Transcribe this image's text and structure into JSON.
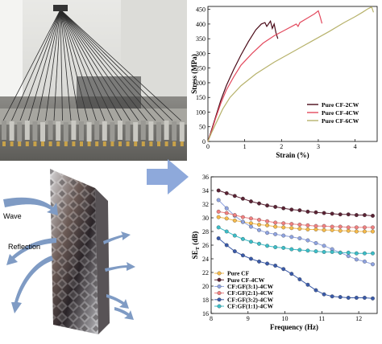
{
  "colors": {
    "arrow_fill": "#8ea9db",
    "wave_arrow": "#7f9bc4",
    "stress_cf2cw": "#4a0a18",
    "stress_cf4cw": "#e34a5e",
    "stress_cf6cw": "#b7b26b"
  },
  "photo": {
    "description_icon": "tensile-test-rig-photo"
  },
  "shielding_diagram": {
    "wave_label": "Wave",
    "reflection_label": "Reflection"
  },
  "chart_data": [
    {
      "type": "line",
      "xlabel": "Strain (%)",
      "ylabel": "Stress (MPa)",
      "xlim": [
        0,
        4.6
      ],
      "ylim": [
        0,
        460
      ],
      "xticks": [
        0,
        1,
        2,
        3,
        4
      ],
      "yticks": [
        0,
        50,
        100,
        150,
        200,
        250,
        300,
        350,
        400,
        450
      ],
      "grid": false,
      "legend_position": "bottom-right",
      "series": [
        {
          "name": "Pure CF-2CW",
          "color": "#4a0a18",
          "x": [
            0,
            0.1,
            0.2,
            0.35,
            0.5,
            0.7,
            0.9,
            1.1,
            1.3,
            1.45,
            1.55,
            1.6,
            1.7,
            1.75,
            1.8,
            1.85,
            1.9
          ],
          "y": [
            0,
            40,
            80,
            140,
            190,
            245,
            295,
            340,
            380,
            400,
            405,
            392,
            410,
            385,
            400,
            370,
            350
          ]
        },
        {
          "name": "Pure CF-4CW",
          "color": "#e34a5e",
          "x": [
            0,
            0.1,
            0.2,
            0.35,
            0.5,
            0.7,
            0.9,
            1.2,
            1.5,
            1.8,
            2.1,
            2.4,
            2.45,
            2.5,
            2.7,
            2.9,
            3.0,
            3.05,
            3.1
          ],
          "y": [
            0,
            35,
            75,
            130,
            175,
            220,
            260,
            300,
            335,
            360,
            380,
            400,
            392,
            405,
            420,
            435,
            445,
            425,
            402
          ]
        },
        {
          "name": "Pure CF-6CW",
          "color": "#b7b26b",
          "x": [
            0,
            0.1,
            0.25,
            0.4,
            0.6,
            0.9,
            1.3,
            1.8,
            2.3,
            2.8,
            3.3,
            3.7,
            4.0,
            4.2,
            4.35,
            4.45,
            4.5
          ],
          "y": [
            0,
            30,
            70,
            110,
            150,
            190,
            230,
            270,
            305,
            340,
            375,
            405,
            425,
            440,
            452,
            458,
            440
          ]
        }
      ]
    },
    {
      "type": "line",
      "xlabel": "Frequency (Hz)",
      "ylabel": "SE_T (dB)",
      "ylabel_main": "SE",
      "ylabel_sub": "T",
      "ylabel_unit": " (dB)",
      "xlim": [
        8,
        12.5
      ],
      "ylim": [
        16,
        36
      ],
      "xticks": [
        8,
        9,
        10,
        11,
        12
      ],
      "yticks": [
        16,
        18,
        20,
        22,
        24,
        26,
        28,
        30,
        32,
        34,
        36
      ],
      "grid": false,
      "legend_position": "bottom-left",
      "x": [
        8.2,
        8.42,
        8.64,
        8.86,
        9.08,
        9.3,
        9.52,
        9.74,
        9.96,
        10.18,
        10.4,
        10.62,
        10.84,
        11.06,
        11.28,
        11.5,
        11.72,
        11.94,
        12.16,
        12.38
      ],
      "series": [
        {
          "name": "Pure CF",
          "color": "#f5b94a",
          "values": [
            30.1,
            29.9,
            29.6,
            29.4,
            29.2,
            29.0,
            28.9,
            28.7,
            28.6,
            28.5,
            28.4,
            28.3,
            28.3,
            28.2,
            28.2,
            28.1,
            28.1,
            28.0,
            28.0,
            28.0
          ]
        },
        {
          "name": "Pure CF-4CW",
          "color": "#5a2334",
          "values": [
            34.0,
            33.6,
            33.2,
            32.8,
            32.4,
            32.1,
            31.8,
            31.6,
            31.4,
            31.2,
            31.1,
            30.9,
            30.8,
            30.7,
            30.6,
            30.5,
            30.5,
            30.4,
            30.4,
            30.3
          ]
        },
        {
          "name": "CF:GF(3:1)-4CW",
          "color": "#8fa3e0",
          "values": [
            32.6,
            31.4,
            30.3,
            29.4,
            28.7,
            28.2,
            27.8,
            27.6,
            27.4,
            27.2,
            27.0,
            26.7,
            26.3,
            25.9,
            25.4,
            24.9,
            24.4,
            23.9,
            23.6,
            23.2
          ]
        },
        {
          "name": "CF:GF(2:1)-4CW",
          "color": "#f08080",
          "values": [
            30.9,
            30.7,
            30.4,
            30.1,
            29.9,
            29.7,
            29.5,
            29.3,
            29.2,
            29.1,
            29.0,
            28.9,
            28.8,
            28.8,
            28.7,
            28.7,
            28.6,
            28.6,
            28.6,
            28.6
          ]
        },
        {
          "name": "CF:GF(3:2)-4CW",
          "color": "#3a5aa8",
          "values": [
            27.0,
            26.0,
            25.1,
            24.5,
            24.0,
            23.6,
            23.3,
            23.0,
            22.5,
            21.8,
            21.0,
            20.2,
            19.4,
            18.8,
            18.5,
            18.4,
            18.3,
            18.3,
            18.3,
            18.2
          ]
        },
        {
          "name": "CF:GF(1:1)-4CW",
          "color": "#3bbdc7",
          "values": [
            28.6,
            28.0,
            27.4,
            26.9,
            26.5,
            26.2,
            25.9,
            25.7,
            25.6,
            25.4,
            25.3,
            25.2,
            25.1,
            25.0,
            25.0,
            24.9,
            24.9,
            24.8,
            24.8,
            24.8
          ]
        }
      ]
    }
  ]
}
